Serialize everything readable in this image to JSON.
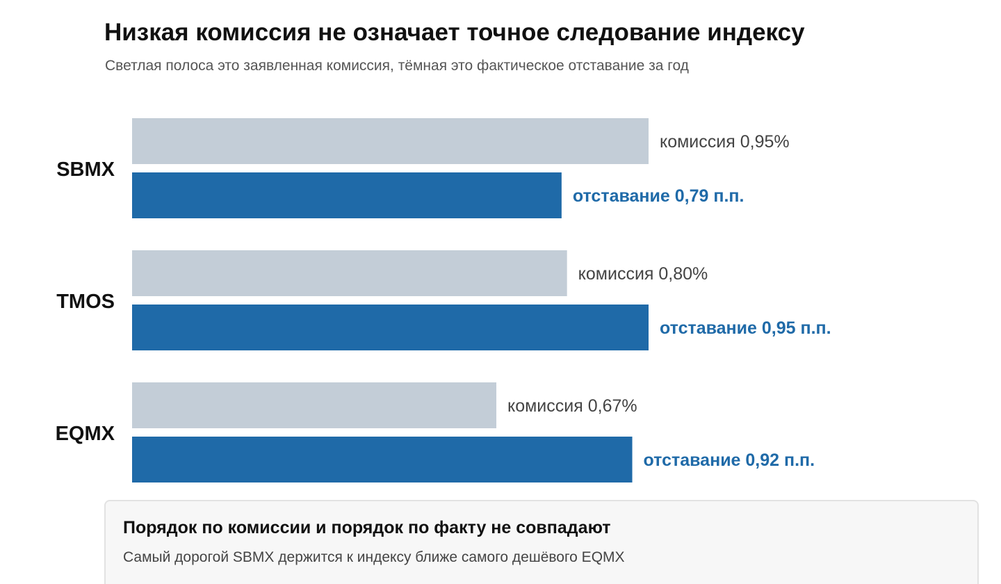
{
  "header": {
    "title": "Низкая комиссия не означает точное следование индексу",
    "subtitle": "Светлая полоса это заявленная комиссия, тёмная это фактическое отставание за год"
  },
  "note": {
    "title": "Порядок по комиссии и порядок по факту не совпадают",
    "text": "Самый дорогой SBMX держится к индексу ближе самого дешёвого EQMX"
  },
  "colors": {
    "fee_bar": "#c3cdd7",
    "lag_bar": "#1f6aa8",
    "fee_text": "#444444",
    "lag_text": "#1f6aa8"
  },
  "chart_data": {
    "type": "bar",
    "orientation": "horizontal",
    "categories": [
      "SBMX",
      "TMOS",
      "EQMX"
    ],
    "series": [
      {
        "values": [
          0.95,
          0.8,
          0.67
        ],
        "labels": [
          "комиссия 0,95%",
          "комиссия 0,80%",
          "комиссия 0,67%"
        ]
      },
      {
        "values": [
          0.79,
          0.95,
          0.92
        ],
        "labels": [
          "отставание 0,79 п.п.",
          "отставание 0,95 п.п.",
          "отставание 0,92 п.п."
        ]
      }
    ],
    "xlim": [
      0,
      0.95
    ],
    "grid": false,
    "legend": "none"
  }
}
